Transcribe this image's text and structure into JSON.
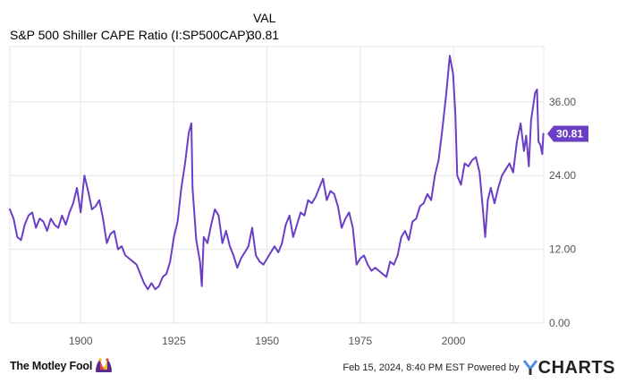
{
  "legend": {
    "column_header": "VAL",
    "series_name": "S&P 500 Shiller CAPE Ratio (I:SP500CAP)",
    "series_value": "30.81"
  },
  "footer": {
    "brand_text": "The Motley Fool",
    "stamp": "Feb 15, 2024, 8:40 PM EST Powered by",
    "ycharts_text": "CHARTS"
  },
  "colors": {
    "series": "#6a3fc4",
    "grid": "#e6e6e6",
    "axis_text": "#555555",
    "brand_purple": "#5b2a8c",
    "brand_red": "#e04a3a"
  },
  "chart_data": {
    "type": "line",
    "xlim": [
      1881,
      2024.2
    ],
    "ylim": [
      0,
      45
    ],
    "x_ticks": [
      1900,
      1925,
      1950,
      1975,
      2000
    ],
    "x_tick_labels": [
      "1900",
      "1925",
      "1950",
      "1975",
      "2000"
    ],
    "y_ticks": [
      0,
      12,
      24,
      36
    ],
    "y_tick_labels": [
      "0.00",
      "12.00",
      "24.00",
      "36.00"
    ],
    "grid": true,
    "last_value_label": "30.81",
    "last_value": 30.81,
    "series": [
      {
        "name": "S&P 500 Shiller CAPE Ratio (I:SP500CAP)",
        "x": [
          1881,
          1882,
          1883,
          1884,
          1885,
          1886,
          1887,
          1888,
          1889,
          1890,
          1891,
          1892,
          1893,
          1894,
          1895,
          1896,
          1897,
          1898,
          1899,
          1900,
          1901,
          1902,
          1903,
          1904,
          1905,
          1906,
          1907,
          1908,
          1909,
          1910,
          1911,
          1912,
          1913,
          1914,
          1915,
          1916,
          1917,
          1918,
          1919,
          1920,
          1921,
          1922,
          1923,
          1924,
          1925,
          1926,
          1927,
          1928,
          1929,
          1929.7,
          1930,
          1931,
          1932,
          1932.5,
          1933,
          1934,
          1935,
          1936,
          1937,
          1938,
          1939,
          1940,
          1941,
          1942,
          1943,
          1944,
          1945,
          1946,
          1947,
          1948,
          1949,
          1950,
          1951,
          1952,
          1953,
          1954,
          1955,
          1956,
          1957,
          1958,
          1959,
          1960,
          1961,
          1962,
          1963,
          1964,
          1965,
          1966,
          1967,
          1968,
          1969,
          1970,
          1971,
          1972,
          1973,
          1974,
          1975,
          1976,
          1977,
          1978,
          1979,
          1980,
          1981,
          1982,
          1983,
          1984,
          1985,
          1986,
          1987,
          1988,
          1989,
          1990,
          1991,
          1992,
          1993,
          1994,
          1995,
          1996,
          1997,
          1998,
          1999,
          1999.9,
          2000.5,
          2001,
          2002,
          2003,
          2004,
          2005,
          2006,
          2007,
          2007.8,
          2008.5,
          2009.2,
          2010,
          2011,
          2012,
          2013,
          2014,
          2015,
          2016,
          2017,
          2018,
          2018.9,
          2019.5,
          2020.2,
          2020.8,
          2021.9,
          2022.4,
          2022.8,
          2023.3,
          2023.8,
          2024.1
        ],
        "values": [
          18.5,
          17.0,
          14.0,
          13.5,
          16.0,
          17.5,
          18.0,
          15.5,
          17.0,
          16.5,
          15.0,
          17.0,
          16.0,
          15.5,
          17.5,
          16.0,
          18.0,
          19.5,
          22.0,
          18.0,
          24.0,
          21.5,
          18.5,
          19.0,
          20.0,
          17.0,
          13.0,
          14.5,
          15.0,
          12.0,
          12.5,
          11.0,
          10.5,
          10.0,
          9.5,
          8.0,
          6.5,
          5.5,
          6.5,
          5.5,
          6.0,
          7.5,
          8.0,
          10.0,
          14.0,
          16.5,
          22.0,
          26.0,
          31.0,
          32.5,
          22.0,
          13.5,
          10.0,
          6.0,
          14.0,
          13.0,
          16.0,
          18.5,
          17.5,
          13.0,
          15.0,
          12.5,
          11.0,
          9.0,
          10.5,
          11.5,
          12.5,
          15.5,
          11.0,
          10.0,
          9.5,
          10.5,
          11.5,
          12.5,
          11.5,
          13.0,
          16.0,
          17.5,
          14.0,
          16.0,
          18.0,
          17.5,
          20.0,
          19.5,
          20.5,
          22.0,
          23.5,
          20.0,
          21.5,
          21.0,
          19.0,
          15.5,
          17.0,
          18.0,
          15.5,
          9.5,
          10.5,
          11.0,
          9.5,
          8.5,
          9.0,
          8.5,
          8.0,
          7.5,
          10.0,
          9.5,
          11.0,
          14.0,
          15.0,
          13.5,
          16.5,
          17.0,
          19.0,
          19.5,
          21.0,
          20.0,
          24.0,
          26.5,
          31.5,
          37.0,
          43.5,
          40.5,
          34.0,
          24.0,
          22.5,
          26.0,
          25.5,
          26.5,
          27.0,
          24.5,
          19.0,
          14.0,
          20.0,
          22.0,
          19.5,
          22.0,
          24.0,
          25.0,
          26.0,
          24.5,
          29.5,
          32.5,
          28.0,
          30.5,
          25.5,
          33.0,
          37.5,
          38.0,
          29.5,
          29.0,
          27.5,
          30.81
        ]
      }
    ]
  }
}
